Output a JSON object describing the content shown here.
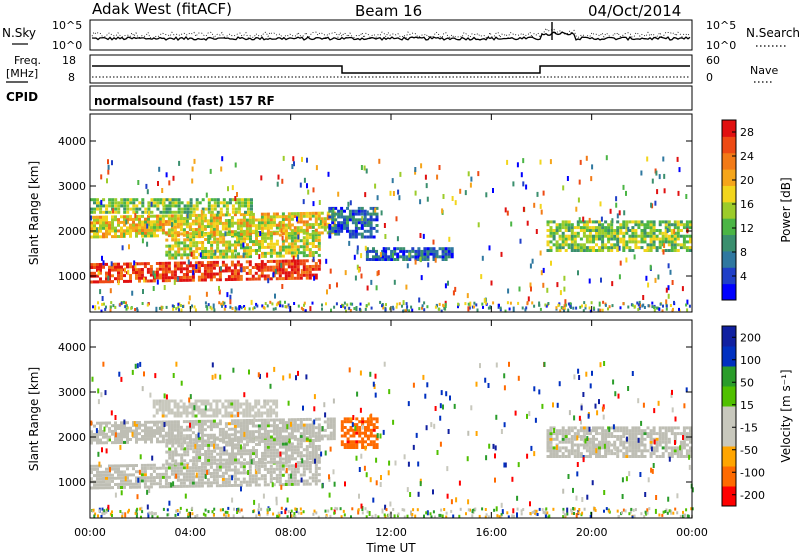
{
  "header": {
    "station": "Adak West (fitACF)",
    "beam": "Beam 16",
    "date": "04/Oct/2014"
  },
  "strip_labels": {
    "noise_sky": "N.Sky",
    "noise_sky_ticks": [
      "10^5",
      "10^0"
    ],
    "noise_search": "N.Search",
    "noise_search_ticks": [
      "10^5",
      "10^0"
    ],
    "freq": "Freq.",
    "freq_unit": "[MHz]",
    "freq_ticks": [
      "18",
      "8"
    ],
    "nave": "Nave",
    "nave_ticks": [
      "60",
      "0"
    ],
    "cpid": "CPID",
    "cpid_text": "normalsound (fast) 157 RF"
  },
  "colors": {
    "power_scale": [
      "#0000ff",
      "#1f3fc8",
      "#2f78a0",
      "#3a8f6e",
      "#4bb545",
      "#9ccc2a",
      "#f2d51c",
      "#f5a51a",
      "#f27a17",
      "#ee4a14",
      "#e01010"
    ],
    "velocity_scale": [
      "#ff0000",
      "#ff6a00",
      "#ffa500",
      "#c8c8bd",
      "#c8c8bd",
      "#50c000",
      "#2a9c2a",
      "#0030c0",
      "#1020a0"
    ],
    "ground_scatter": "#bebeb4"
  },
  "chart_data": [
    {
      "type": "heatmap",
      "panel": "power",
      "xlabel": "",
      "ylabel": "Slant Range [km]",
      "x_ticks": [
        "00:00",
        "04:00",
        "08:00",
        "12:00",
        "16:00",
        "20:00",
        "00:00"
      ],
      "y_ticks": [
        1000,
        2000,
        3000,
        4000
      ],
      "ylim": [
        200,
        4600
      ],
      "xlim": [
        0,
        24
      ],
      "colorbar_label": "Power [dB]",
      "colorbar_ticks": [
        4,
        8,
        12,
        16,
        20,
        24,
        28
      ],
      "colorbar_range": [
        0,
        30
      ],
      "scatter_regions": [
        {
          "t_start": 0,
          "t_end": 9.2,
          "range_start": 900,
          "range_end": 1350,
          "power": 27
        },
        {
          "t_start": 3.0,
          "t_end": 9.2,
          "range_start": 1400,
          "range_end": 2000,
          "power": 16
        },
        {
          "t_start": 0,
          "t_end": 9.8,
          "range_start": 1900,
          "range_end": 2400,
          "power": 18
        },
        {
          "t_start": 0,
          "t_end": 6.5,
          "range_start": 2450,
          "range_end": 2800,
          "power": 14
        },
        {
          "t_start": 9.5,
          "t_end": 11.5,
          "range_start": 1900,
          "range_end": 2600,
          "power": 6
        },
        {
          "t_start": 11.0,
          "t_end": 14.5,
          "range_start": 1400,
          "range_end": 1700,
          "power": 6
        },
        {
          "t_start": 18.2,
          "t_end": 24,
          "range_start": 1600,
          "range_end": 2300,
          "power": 14
        }
      ]
    },
    {
      "type": "heatmap",
      "panel": "velocity",
      "xlabel": "Time UT",
      "ylabel": "Slant Range [km]",
      "x_ticks": [
        "00:00",
        "04:00",
        "08:00",
        "12:00",
        "16:00",
        "20:00",
        "00:00"
      ],
      "y_ticks": [
        1000,
        2000,
        3000,
        4000
      ],
      "ylim": [
        200,
        4600
      ],
      "xlim": [
        0,
        24
      ],
      "colorbar_label": "Velocity [m s⁻¹]",
      "colorbar_ticks": [
        -200,
        -100,
        -50,
        -15,
        15,
        50,
        100,
        200
      ],
      "colorbar_range": [
        -250,
        250
      ],
      "scatter_regions": [
        {
          "t_start": 0,
          "t_end": 9.2,
          "range_start": 900,
          "range_end": 1450,
          "velocity": 0
        },
        {
          "t_start": 3.0,
          "t_end": 9.2,
          "range_start": 1400,
          "range_end": 2000,
          "velocity": 0
        },
        {
          "t_start": 0,
          "t_end": 9.8,
          "range_start": 1900,
          "range_end": 2400,
          "velocity": 0
        },
        {
          "t_start": 2.5,
          "t_end": 7.5,
          "range_start": 2500,
          "range_end": 2900,
          "velocity": -40
        },
        {
          "t_start": 10.0,
          "t_end": 11.5,
          "range_start": 1800,
          "range_end": 2500,
          "velocity": -150
        },
        {
          "t_start": 18.2,
          "t_end": 24,
          "range_start": 1600,
          "range_end": 2300,
          "velocity": 0
        }
      ]
    }
  ]
}
